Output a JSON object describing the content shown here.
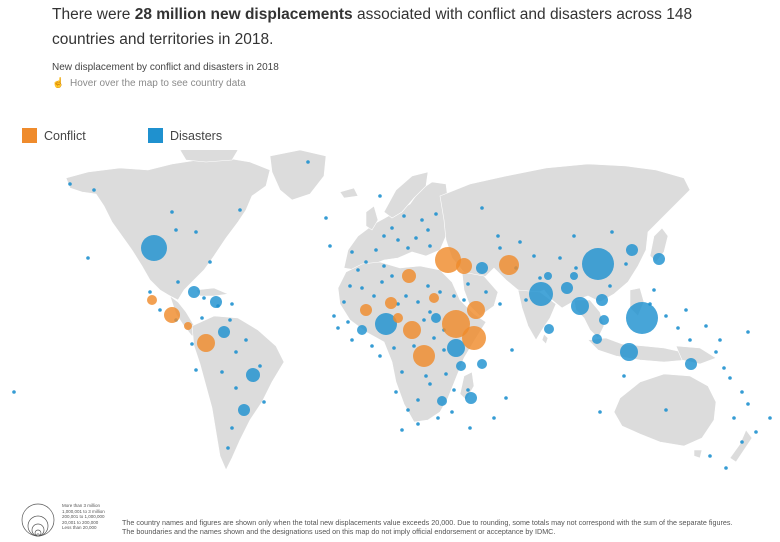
{
  "headline": {
    "prefix": "There were ",
    "bold": "28 million new displacements",
    "suffix": " associated with conflict and disasters across 148 countries and territories in 2018."
  },
  "subtitle": "New displacement by conflict and disasters in 2018",
  "hint": "Hover over the map to see country data",
  "legend": [
    {
      "label": "Conflict",
      "color": "#ef8b2c"
    },
    {
      "label": "Disasters",
      "color": "#1f91cf"
    }
  ],
  "colors": {
    "land": "#dcdcdc",
    "conflict": "#ef8b2c",
    "disasters": "#1f91cf",
    "background": "#ffffff"
  },
  "size_legend": [
    "More than 3 million",
    "1,000,001 to 3 million",
    "200,001 to 1,000,000",
    "20,001 to 200,000",
    "Less than 20,000"
  ],
  "notes": [
    "The country names and figures are shown only when the total new displacements value exceeds 20,000. Due to rounding, some totals may not correspond with the sum of the separate figures.",
    "The boundaries and the names shown and the designations used on this map do not imply official endorsement or acceptance by IDMC."
  ]
}
